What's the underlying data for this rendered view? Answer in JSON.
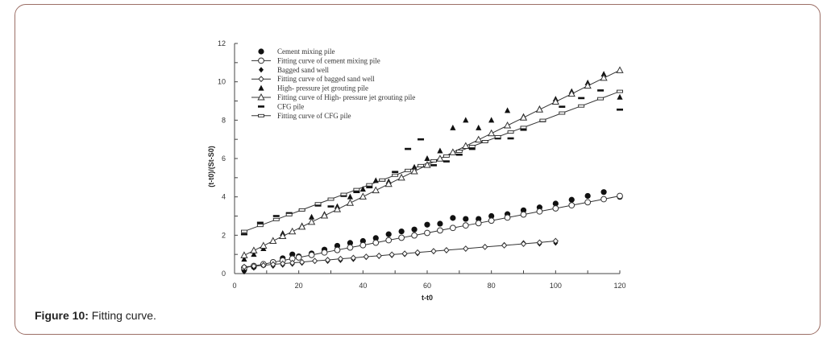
{
  "figure": {
    "caption_label": "Figure 10:",
    "caption_text": " Fitting curve."
  },
  "chart_data": {
    "type": "scatter",
    "title": "",
    "xlabel": "t-t0",
    "ylabel": "(t-t0)/(St-S0)",
    "xlim": [
      0,
      120
    ],
    "ylim": [
      0,
      12
    ],
    "xticks": [
      0,
      20,
      40,
      60,
      80,
      100,
      120
    ],
    "yticks": [
      0,
      2,
      4,
      6,
      8,
      10,
      12
    ],
    "grid": false,
    "legend_position": "upper-left",
    "legend": [
      "Cement mixing pile",
      "Fitting curve of cement mixing pile",
      "Bagged sand well",
      "Fitting curve of bagged sand well",
      "High- pressure jet grouting pile",
      "Fitting curve of High- pressure jet grouting pile",
      "CFG pile",
      "Fitting curve of CFG pile"
    ],
    "series": [
      {
        "name": "Cement mixing pile",
        "kind": "scatter",
        "marker": "filled-circle",
        "x": [
          3,
          6,
          9,
          12,
          15,
          18,
          20,
          24,
          28,
          32,
          36,
          40,
          44,
          48,
          52,
          56,
          60,
          64,
          68,
          72,
          76,
          80,
          85,
          90,
          95,
          100,
          105,
          110,
          115,
          120
        ],
        "y": [
          0.2,
          0.35,
          0.45,
          0.6,
          0.8,
          1.0,
          0.9,
          1.05,
          1.25,
          1.45,
          1.6,
          1.7,
          1.85,
          2.05,
          2.2,
          2.3,
          2.55,
          2.6,
          2.9,
          2.85,
          2.85,
          3.0,
          3.1,
          3.3,
          3.45,
          3.65,
          3.85,
          4.05,
          4.25,
          4.0
        ]
      },
      {
        "name": "Fitting curve of cement mixing pile",
        "kind": "line",
        "marker": "open-circle",
        "x": [
          3,
          6,
          9,
          12,
          15,
          18,
          20,
          24,
          28,
          32,
          36,
          40,
          44,
          48,
          52,
          56,
          60,
          64,
          68,
          72,
          76,
          80,
          85,
          90,
          95,
          100,
          105,
          110,
          115,
          120
        ],
        "y": [
          0.3,
          0.4,
          0.49,
          0.59,
          0.68,
          0.78,
          0.84,
          0.97,
          1.1,
          1.23,
          1.36,
          1.48,
          1.61,
          1.74,
          1.87,
          1.99,
          2.12,
          2.25,
          2.38,
          2.51,
          2.63,
          2.76,
          2.92,
          3.08,
          3.24,
          3.4,
          3.56,
          3.72,
          3.88,
          4.05
        ]
      },
      {
        "name": "Bagged sand well",
        "kind": "scatter",
        "marker": "filled-diamond",
        "x": [
          3,
          6,
          9,
          12,
          15,
          18,
          21,
          25,
          29,
          33,
          37,
          41,
          45,
          49,
          53,
          57,
          62,
          66,
          72,
          78,
          84,
          90,
          95,
          100
        ],
        "y": [
          0.1,
          0.3,
          0.45,
          0.4,
          0.45,
          0.5,
          0.55,
          0.65,
          0.65,
          0.7,
          0.75,
          0.85,
          0.9,
          0.95,
          1.0,
          1.05,
          1.15,
          1.2,
          1.3,
          1.4,
          1.5,
          1.6,
          1.55,
          1.6
        ]
      },
      {
        "name": "Fitting curve of bagged sand well",
        "kind": "line",
        "marker": "open-diamond",
        "x": [
          3,
          6,
          9,
          12,
          15,
          18,
          21,
          25,
          29,
          33,
          37,
          41,
          45,
          49,
          53,
          57,
          62,
          66,
          72,
          78,
          84,
          90,
          95,
          100
        ],
        "y": [
          0.35,
          0.39,
          0.43,
          0.48,
          0.52,
          0.56,
          0.6,
          0.66,
          0.71,
          0.77,
          0.82,
          0.88,
          0.93,
          0.99,
          1.04,
          1.1,
          1.17,
          1.22,
          1.3,
          1.39,
          1.47,
          1.55,
          1.62,
          1.7
        ]
      },
      {
        "name": "High- pressure jet grouting pile",
        "kind": "scatter",
        "marker": "filled-triangle",
        "x": [
          3,
          6,
          9,
          12,
          15,
          18,
          21,
          24,
          28,
          32,
          36,
          40,
          44,
          48,
          52,
          56,
          60,
          64,
          68,
          72,
          76,
          80,
          85,
          90,
          95,
          100,
          105,
          110,
          115,
          120
        ],
        "y": [
          0.75,
          1.0,
          1.3,
          1.7,
          2.1,
          2.2,
          2.5,
          2.95,
          3.1,
          3.5,
          4.0,
          4.4,
          4.85,
          4.8,
          5.0,
          5.55,
          6.0,
          6.4,
          7.6,
          8.0,
          7.6,
          8.0,
          8.5,
          8.2,
          8.6,
          9.1,
          9.5,
          9.95,
          10.4,
          9.2
        ]
      },
      {
        "name": "Fitting curve of High- pressure jet grouting pile",
        "kind": "line",
        "marker": "open-triangle",
        "x": [
          3,
          6,
          9,
          12,
          15,
          18,
          21,
          24,
          28,
          32,
          36,
          40,
          44,
          48,
          52,
          56,
          60,
          64,
          68,
          72,
          76,
          80,
          85,
          90,
          95,
          100,
          105,
          110,
          115,
          120
        ],
        "y": [
          0.95,
          1.2,
          1.45,
          1.7,
          1.95,
          2.19,
          2.44,
          2.69,
          3.02,
          3.35,
          3.68,
          4.01,
          4.34,
          4.67,
          5.0,
          5.33,
          5.66,
          5.99,
          6.32,
          6.65,
          6.98,
          7.31,
          7.72,
          8.13,
          8.55,
          8.96,
          9.37,
          9.79,
          10.2,
          10.6
        ]
      },
      {
        "name": "CFG pile",
        "kind": "scatter",
        "marker": "dash",
        "x": [
          3,
          8,
          13,
          17,
          21,
          26,
          30,
          34,
          38,
          42,
          46,
          50,
          54,
          58,
          62,
          66,
          70,
          74,
          78,
          82,
          86,
          90,
          96,
          102,
          108,
          114,
          120
        ],
        "y": [
          2.05,
          2.65,
          3.0,
          3.15,
          3.3,
          3.55,
          3.5,
          4.05,
          4.25,
          4.5,
          4.85,
          5.3,
          6.5,
          7.0,
          5.65,
          5.85,
          6.2,
          6.5,
          6.9,
          7.05,
          7.05,
          7.5,
          7.95,
          8.7,
          9.15,
          9.55,
          8.55
        ]
      },
      {
        "name": "Fitting curve of CFG pile",
        "kind": "line",
        "marker": "open-dash",
        "x": [
          3,
          8,
          13,
          17,
          21,
          26,
          30,
          34,
          38,
          42,
          46,
          50,
          54,
          58,
          62,
          66,
          70,
          74,
          78,
          82,
          86,
          90,
          96,
          102,
          108,
          114,
          120
        ],
        "y": [
          2.2,
          2.51,
          2.82,
          3.07,
          3.32,
          3.64,
          3.88,
          4.13,
          4.38,
          4.63,
          4.88,
          5.13,
          5.38,
          5.63,
          5.88,
          6.13,
          6.38,
          6.63,
          6.88,
          7.13,
          7.38,
          7.62,
          7.99,
          8.37,
          8.74,
          9.12,
          9.5
        ]
      }
    ]
  }
}
